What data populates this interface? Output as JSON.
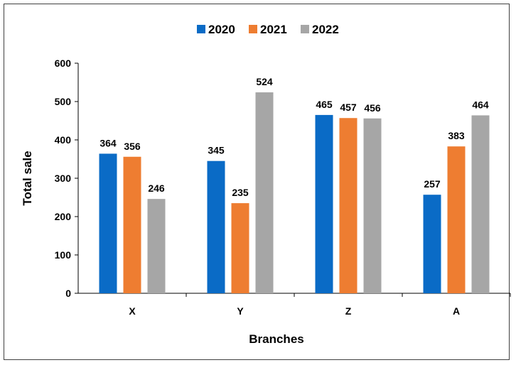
{
  "chart_data": {
    "type": "bar",
    "title": "",
    "xlabel": "Branches",
    "ylabel": "Total sale",
    "categories": [
      "X",
      "Y",
      "Z",
      "A"
    ],
    "series": [
      {
        "name": "2020",
        "color": "#0A6BC6",
        "values": [
          364,
          345,
          465,
          257
        ]
      },
      {
        "name": "2021",
        "color": "#EE7D31",
        "values": [
          356,
          235,
          457,
          383
        ]
      },
      {
        "name": "2022",
        "color": "#A6A6A6",
        "values": [
          246,
          524,
          456,
          464
        ]
      }
    ],
    "ylim": [
      0,
      600
    ],
    "yticks": [
      "0",
      "100",
      "200",
      "300",
      "400",
      "500",
      "600"
    ],
    "grid": false,
    "legend_position": "top-center",
    "data_labels": true
  }
}
